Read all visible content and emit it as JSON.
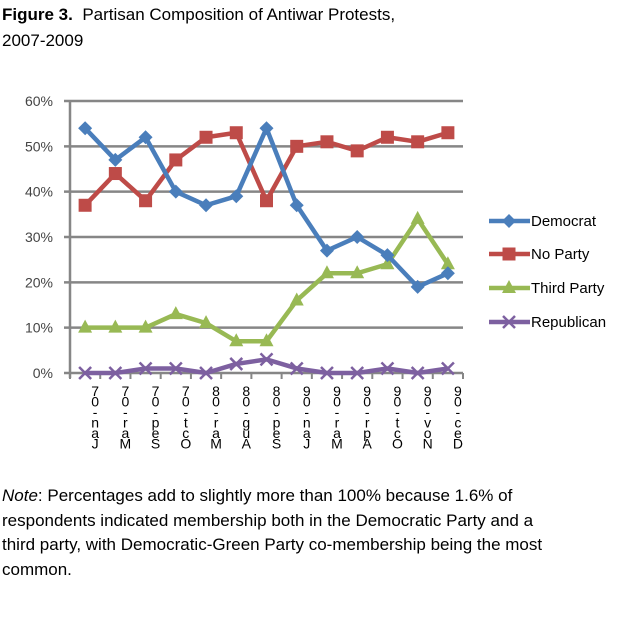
{
  "figure": {
    "number_label": "Figure 3.",
    "title": "Partisan Composition of Antiwar Protests,",
    "title_line2": "2007-2009"
  },
  "note": {
    "label": "Note",
    "text": ": Percentages add to slightly more than 100% because 1.6% of respondents indicated membership both in the Democratic Party and a third party, with Democratic-Green Party co-membership being the most common."
  },
  "chart_data": {
    "type": "line",
    "title": "Partisan Composition of Antiwar Protests, 2007-2009",
    "xlabel": "",
    "ylabel": "",
    "categories": [
      "Jan-07",
      "Mar-07",
      "Sep-07",
      "Oct-07",
      "Mar-08",
      "Aug-08",
      "Sep-08",
      "Jan-09",
      "Mar-09",
      "Apr-09",
      "Oct-09",
      "Nov-09",
      "Dec-09"
    ],
    "ylim": [
      0,
      60
    ],
    "yticks": [
      0,
      10,
      20,
      30,
      40,
      50,
      60
    ],
    "ytick_labels": [
      "0%",
      "10%",
      "20%",
      "30%",
      "40%",
      "50%",
      "60%"
    ],
    "grid": true,
    "legend_position": "right",
    "series": [
      {
        "name": "Democrat",
        "color": "#4a7ebb",
        "marker": "diamond",
        "values": [
          54,
          47,
          52,
          40,
          37,
          39,
          54,
          37,
          27,
          30,
          26,
          19,
          22
        ]
      },
      {
        "name": "No Party",
        "color": "#be4b48",
        "marker": "square",
        "values": [
          37,
          44,
          38,
          47,
          52,
          53,
          38,
          50,
          51,
          49,
          52,
          51,
          53
        ]
      },
      {
        "name": "Third Party",
        "color": "#98b954",
        "marker": "triangle",
        "values": [
          10,
          10,
          10,
          13,
          11,
          7,
          7,
          16,
          22,
          22,
          24,
          34,
          24
        ]
      },
      {
        "name": "Republican",
        "color": "#7d60a0",
        "marker": "x",
        "values": [
          0,
          0,
          1,
          1,
          0,
          2,
          3,
          1,
          0,
          0,
          1,
          0,
          1
        ]
      }
    ]
  }
}
